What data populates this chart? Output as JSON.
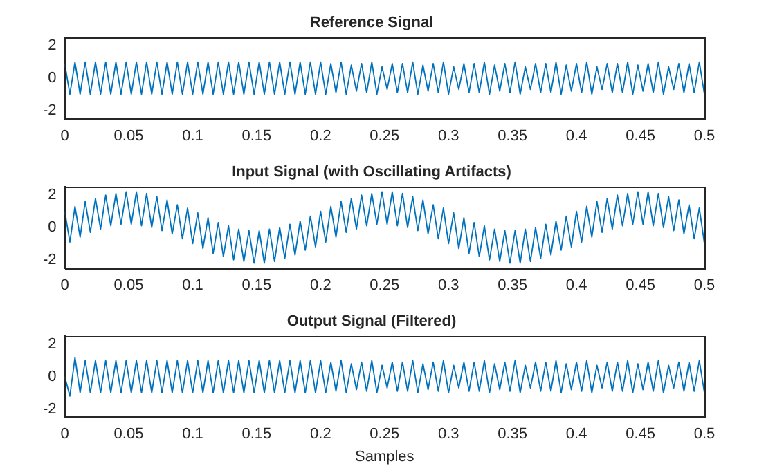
{
  "chart_data": [
    {
      "type": "line",
      "title": "Reference Signal",
      "xlim": [
        0,
        0.5
      ],
      "xticks": [
        0,
        0.05,
        0.1,
        0.15,
        0.2,
        0.25,
        0.3,
        0.35,
        0.4,
        0.45,
        0.5
      ],
      "ylim": [
        -2.5,
        2.5
      ],
      "yticks": [
        -2,
        0,
        2
      ],
      "grid": false,
      "legend": false,
      "x": [
        0,
        0.004,
        0.008,
        0.012,
        0.016,
        0.02,
        0.024,
        0.028,
        0.032,
        0.036,
        0.04,
        0.044,
        0.048,
        0.052,
        0.056,
        0.06,
        0.064,
        0.068,
        0.072,
        0.076,
        0.08,
        0.084,
        0.088,
        0.092,
        0.096,
        0.1,
        0.104,
        0.108,
        0.112,
        0.116,
        0.12,
        0.124,
        0.128,
        0.132,
        0.136,
        0.14,
        0.144,
        0.148,
        0.152,
        0.156,
        0.16,
        0.164,
        0.168,
        0.172,
        0.176,
        0.18,
        0.184,
        0.188,
        0.192,
        0.196,
        0.2,
        0.204,
        0.208,
        0.212,
        0.216,
        0.22,
        0.224,
        0.228,
        0.232,
        0.236,
        0.24,
        0.244,
        0.248,
        0.252,
        0.256,
        0.26,
        0.264,
        0.268,
        0.272,
        0.276,
        0.28,
        0.284,
        0.288,
        0.292,
        0.296,
        0.3,
        0.304,
        0.308,
        0.312,
        0.316,
        0.32,
        0.324,
        0.328,
        0.332,
        0.336,
        0.34,
        0.344,
        0.348,
        0.352,
        0.356,
        0.36,
        0.364,
        0.368,
        0.372,
        0.376,
        0.38,
        0.384,
        0.388,
        0.392,
        0.396,
        0.4,
        0.404,
        0.408,
        0.412,
        0.416,
        0.42,
        0.424,
        0.428,
        0.432,
        0.436,
        0.44,
        0.444,
        0.448,
        0.452,
        0.456,
        0.46,
        0.464,
        0.468,
        0.472,
        0.476,
        0.48,
        0.484,
        0.488,
        0.492,
        0.496,
        0.5
      ],
      "series": [
        {
          "color": "#0072bd",
          "values": [
            0.9,
            -1.0,
            1.0,
            -1.0,
            1.0,
            -1.0,
            1.0,
            -1.0,
            1.0,
            -1.0,
            1.0,
            -1.0,
            1.0,
            -1.0,
            1.0,
            -1.0,
            1.0,
            -1.0,
            1.0,
            -1.0,
            1.0,
            -1.0,
            1.0,
            -1.0,
            1.0,
            -1.0,
            1.0,
            -1.0,
            1.0,
            -1.0,
            1.0,
            -1.0,
            1.0,
            -1.0,
            1.0,
            -1.0,
            1.0,
            -1.0,
            1.0,
            -1.0,
            1.0,
            -1.0,
            1.0,
            -1.0,
            1.0,
            -1.0,
            1.0,
            -1.0,
            1.0,
            -1.0,
            1.0,
            -1.0,
            0.9,
            -0.9,
            1.0,
            -1.0,
            0.8,
            -0.8,
            0.9,
            -0.9,
            1.0,
            -1.0,
            0.7,
            -0.7,
            0.9,
            -0.9,
            0.9,
            -0.9,
            1.0,
            -1.0,
            0.8,
            -0.8,
            0.9,
            -0.9,
            1.0,
            -1.0,
            0.7,
            -0.7,
            0.9,
            -0.9,
            0.9,
            -0.9,
            1.0,
            -1.0,
            0.8,
            -0.8,
            0.9,
            -0.9,
            1.0,
            -1.0,
            0.7,
            -0.7,
            0.9,
            -0.9,
            0.9,
            -0.9,
            1.0,
            -1.0,
            0.8,
            -0.8,
            0.9,
            -0.9,
            1.0,
            -1.0,
            0.7,
            -0.7,
            0.9,
            -0.9,
            0.9,
            -0.9,
            1.0,
            -1.0,
            0.8,
            -0.8,
            0.9,
            -0.9,
            1.0,
            -1.0,
            0.7,
            -0.7,
            0.9,
            -0.9,
            0.9,
            -0.9,
            1.0,
            -1.0
          ]
        }
      ]
    },
    {
      "type": "line",
      "title": "Input Signal (with Oscillating Artifacts)",
      "xlim": [
        0,
        0.5
      ],
      "xticks": [
        0,
        0.05,
        0.1,
        0.15,
        0.2,
        0.25,
        0.3,
        0.35,
        0.4,
        0.45,
        0.5
      ],
      "ylim": [
        -2.5,
        2.5
      ],
      "yticks": [
        -2,
        0,
        2
      ],
      "grid": false,
      "legend": false,
      "x": [
        0,
        0.004,
        0.008,
        0.012,
        0.016,
        0.02,
        0.024,
        0.028,
        0.032,
        0.036,
        0.04,
        0.044,
        0.048,
        0.052,
        0.056,
        0.06,
        0.064,
        0.068,
        0.072,
        0.076,
        0.08,
        0.084,
        0.088,
        0.092,
        0.096,
        0.1,
        0.104,
        0.108,
        0.112,
        0.116,
        0.12,
        0.124,
        0.128,
        0.132,
        0.136,
        0.14,
        0.144,
        0.148,
        0.152,
        0.156,
        0.16,
        0.164,
        0.168,
        0.172,
        0.176,
        0.18,
        0.184,
        0.188,
        0.192,
        0.196,
        0.2,
        0.204,
        0.208,
        0.212,
        0.216,
        0.22,
        0.224,
        0.228,
        0.232,
        0.236,
        0.24,
        0.244,
        0.248,
        0.252,
        0.256,
        0.26,
        0.264,
        0.268,
        0.272,
        0.276,
        0.28,
        0.284,
        0.288,
        0.292,
        0.296,
        0.3,
        0.304,
        0.308,
        0.312,
        0.316,
        0.32,
        0.324,
        0.328,
        0.332,
        0.336,
        0.34,
        0.344,
        0.348,
        0.352,
        0.356,
        0.36,
        0.364,
        0.368,
        0.372,
        0.376,
        0.38,
        0.384,
        0.388,
        0.392,
        0.396,
        0.4,
        0.404,
        0.408,
        0.412,
        0.416,
        0.42,
        0.424,
        0.428,
        0.432,
        0.436,
        0.44,
        0.444,
        0.448,
        0.452,
        0.456,
        0.46,
        0.464,
        0.468,
        0.472,
        0.476,
        0.48,
        0.484,
        0.488,
        0.492,
        0.496,
        0.5
      ],
      "series": [
        {
          "color": "#0072bd",
          "values": [
            1.0,
            -0.9,
            1.3,
            -0.6,
            1.6,
            -0.3,
            1.8,
            -0.1,
            2.0,
            0.1,
            2.1,
            0.2,
            2.2,
            0.2,
            2.2,
            0.1,
            2.1,
            0.0,
            1.9,
            -0.2,
            1.7,
            -0.4,
            1.4,
            -0.7,
            1.2,
            -1.0,
            0.9,
            -1.3,
            0.6,
            -1.6,
            0.3,
            -1.8,
            0.1,
            -2.0,
            -0.1,
            -2.1,
            -0.2,
            -2.2,
            -0.2,
            -2.2,
            -0.1,
            -2.1,
            0.0,
            -1.9,
            0.2,
            -1.7,
            0.4,
            -1.4,
            0.7,
            -1.2,
            1.0,
            -0.9,
            1.3,
            -0.6,
            1.6,
            -0.3,
            1.8,
            -0.1,
            2.0,
            0.1,
            2.1,
            0.2,
            2.2,
            0.2,
            2.2,
            0.1,
            2.1,
            0.0,
            1.9,
            -0.2,
            1.7,
            -0.4,
            1.4,
            -0.7,
            1.2,
            -1.0,
            0.9,
            -1.3,
            0.6,
            -1.6,
            0.3,
            -1.8,
            0.1,
            -2.0,
            -0.1,
            -2.1,
            -0.2,
            -2.2,
            -0.2,
            -2.2,
            -0.1,
            -2.1,
            0.0,
            -1.9,
            0.2,
            -1.7,
            0.4,
            -1.4,
            0.7,
            -1.2,
            1.0,
            -0.9,
            1.3,
            -0.6,
            1.6,
            -0.3,
            1.8,
            -0.1,
            2.0,
            0.1,
            2.1,
            0.2,
            2.2,
            0.2,
            2.2,
            0.1,
            2.1,
            0.0,
            1.9,
            -0.2,
            1.7,
            -0.4,
            1.4,
            -0.7,
            1.2,
            -1.0
          ]
        }
      ]
    },
    {
      "type": "line",
      "title": "Output Signal (Filtered)",
      "xlabel": "Samples",
      "xlim": [
        0,
        0.5
      ],
      "xticks": [
        0,
        0.05,
        0.1,
        0.15,
        0.2,
        0.25,
        0.3,
        0.35,
        0.4,
        0.45,
        0.5
      ],
      "ylim": [
        -2.5,
        2.5
      ],
      "yticks": [
        -2,
        0,
        2
      ],
      "grid": false,
      "legend": false,
      "x": [
        0,
        0.004,
        0.008,
        0.012,
        0.016,
        0.02,
        0.024,
        0.028,
        0.032,
        0.036,
        0.04,
        0.044,
        0.048,
        0.052,
        0.056,
        0.06,
        0.064,
        0.068,
        0.072,
        0.076,
        0.08,
        0.084,
        0.088,
        0.092,
        0.096,
        0.1,
        0.104,
        0.108,
        0.112,
        0.116,
        0.12,
        0.124,
        0.128,
        0.132,
        0.136,
        0.14,
        0.144,
        0.148,
        0.152,
        0.156,
        0.16,
        0.164,
        0.168,
        0.172,
        0.176,
        0.18,
        0.184,
        0.188,
        0.192,
        0.196,
        0.2,
        0.204,
        0.208,
        0.212,
        0.216,
        0.22,
        0.224,
        0.228,
        0.232,
        0.236,
        0.24,
        0.244,
        0.248,
        0.252,
        0.256,
        0.26,
        0.264,
        0.268,
        0.272,
        0.276,
        0.28,
        0.284,
        0.288,
        0.292,
        0.296,
        0.3,
        0.304,
        0.308,
        0.312,
        0.316,
        0.32,
        0.324,
        0.328,
        0.332,
        0.336,
        0.34,
        0.344,
        0.348,
        0.352,
        0.356,
        0.36,
        0.364,
        0.368,
        0.372,
        0.376,
        0.38,
        0.384,
        0.388,
        0.392,
        0.396,
        0.4,
        0.404,
        0.408,
        0.412,
        0.416,
        0.42,
        0.424,
        0.428,
        0.432,
        0.436,
        0.44,
        0.444,
        0.448,
        0.452,
        0.456,
        0.46,
        0.464,
        0.468,
        0.472,
        0.476,
        0.48,
        0.484,
        0.488,
        0.492,
        0.496,
        0.5
      ],
      "series": [
        {
          "color": "#0072bd",
          "values": [
            0.0,
            -1.2,
            1.2,
            -1.0,
            1.0,
            -1.0,
            1.0,
            -1.0,
            1.0,
            -1.0,
            1.0,
            -1.0,
            1.0,
            -1.0,
            1.0,
            -1.0,
            1.0,
            -1.0,
            1.0,
            -1.0,
            1.0,
            -1.0,
            1.0,
            -1.0,
            1.0,
            -1.0,
            1.0,
            -1.0,
            1.0,
            -1.0,
            1.0,
            -1.0,
            1.0,
            -1.0,
            1.0,
            -1.0,
            1.0,
            -1.0,
            1.0,
            -1.0,
            1.0,
            -1.0,
            1.0,
            -1.0,
            1.0,
            -1.0,
            1.0,
            -1.0,
            1.0,
            -1.0,
            1.0,
            -1.0,
            0.9,
            -0.9,
            1.0,
            -1.0,
            0.8,
            -0.8,
            0.9,
            -0.9,
            1.0,
            -1.0,
            0.7,
            -0.7,
            0.9,
            -0.9,
            0.9,
            -0.9,
            1.0,
            -1.0,
            0.8,
            -0.8,
            0.9,
            -0.9,
            1.0,
            -1.0,
            0.7,
            -0.7,
            0.9,
            -0.9,
            0.9,
            -0.9,
            1.0,
            -1.0,
            0.8,
            -0.8,
            0.9,
            -0.9,
            1.0,
            -1.0,
            0.7,
            -0.7,
            0.9,
            -0.9,
            0.9,
            -0.9,
            1.0,
            -1.0,
            0.8,
            -0.8,
            0.9,
            -0.9,
            1.0,
            -1.0,
            0.7,
            -0.7,
            0.9,
            -0.9,
            0.9,
            -0.9,
            1.0,
            -1.0,
            0.8,
            -0.8,
            0.9,
            -0.9,
            1.0,
            -1.0,
            0.7,
            -0.7,
            0.9,
            -0.9,
            0.9,
            -0.9,
            1.0,
            -1.0
          ]
        }
      ]
    }
  ]
}
